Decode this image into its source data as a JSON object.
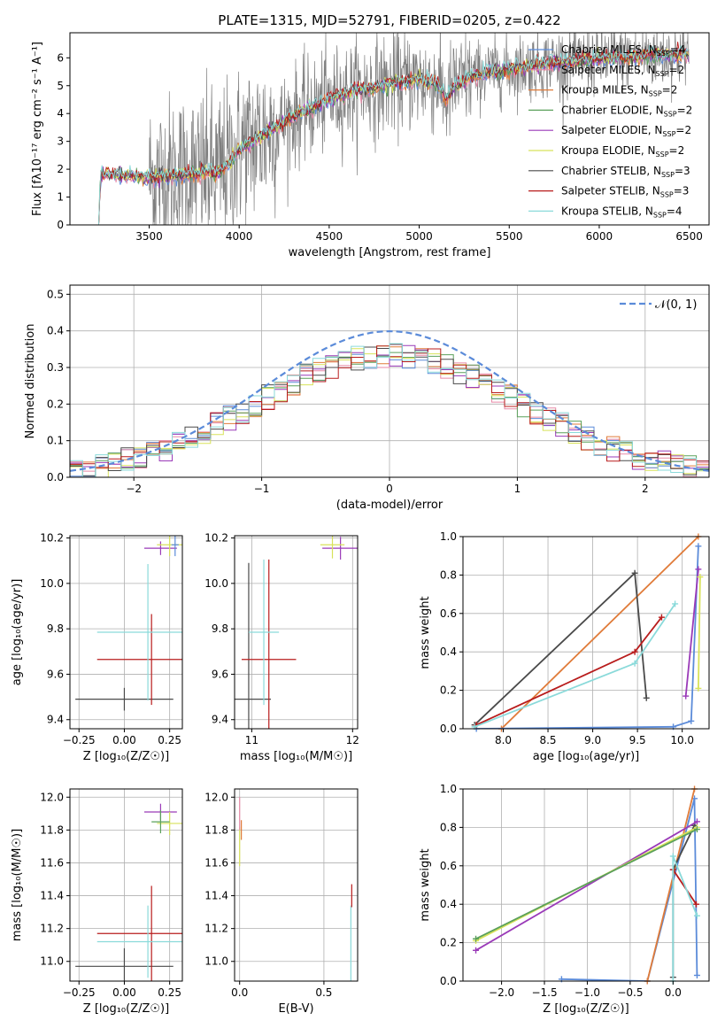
{
  "figure": {
    "title": "PLATE=1315, MJD=52791, FIBERID=0205, z=0.422"
  },
  "colors": {
    "Chabrier MILES": "#5b8bd9",
    "Salpeter MILES": "#e88aa8",
    "Kroupa MILES": "#e07b39",
    "Chabrier ELODIE": "#5aa05a",
    "Salpeter ELODIE": "#9a3ab8",
    "Kroupa ELODIE": "#d8e25a",
    "Chabrier STELIB": "#4a4a4a",
    "Salpeter STELIB": "#b81c1c",
    "Kroupa STELIB": "#8adada",
    "data": "#7f7f7f",
    "grid": "#b0b0b0",
    "normal": "#5b8bd9"
  },
  "chart_data": [
    {
      "id": "spectrum",
      "type": "line",
      "title": "PLATE=1315, MJD=52791, FIBERID=0205, z=0.422",
      "xlabel": "wavelength [Angstrom, rest frame]",
      "xlim": [
        3060,
        6610
      ],
      "ylim": [
        0,
        6.9
      ],
      "xticks": [
        "3500",
        "4000",
        "4500",
        "5000",
        "5500",
        "6000",
        "6500"
      ],
      "yticks": [
        "0",
        "1",
        "2",
        "3",
        "4",
        "5",
        "6"
      ],
      "grid": false,
      "legend_location": "upper right",
      "legend": [
        {
          "label": "Chabrier MILES",
          "nssp": "4"
        },
        {
          "label": "Salpeter MILES",
          "nssp": "2"
        },
        {
          "label": "Kroupa MILES",
          "nssp": "2"
        },
        {
          "label": "Chabrier ELODIE",
          "nssp": "2"
        },
        {
          "label": "Salpeter ELODIE",
          "nssp": "2"
        },
        {
          "label": "Kroupa ELODIE",
          "nssp": "2"
        },
        {
          "label": "Chabrier STELIB",
          "nssp": "3"
        },
        {
          "label": "Salpeter STELIB",
          "nssp": "3"
        },
        {
          "label": "Kroupa STELIB",
          "nssp": "4"
        }
      ],
      "continuum": {
        "wavelength": [
          3220,
          3230,
          3300,
          3400,
          3500,
          3600,
          3700,
          3800,
          3880,
          3920,
          3960,
          4000,
          4100,
          4200,
          4300,
          4400,
          4500,
          4600,
          4700,
          4800,
          4900,
          5000,
          5100,
          5150,
          5200,
          5300,
          5400,
          5500,
          5600,
          5700,
          5800,
          5900,
          6000,
          6100,
          6200,
          6300,
          6400,
          6500
        ],
        "flux": [
          0,
          1.85,
          1.8,
          1.75,
          1.7,
          1.75,
          1.8,
          1.9,
          1.85,
          2.05,
          2.3,
          2.7,
          3.1,
          3.5,
          3.9,
          4.2,
          4.5,
          4.75,
          4.9,
          5.0,
          5.15,
          5.2,
          5.1,
          4.5,
          5.0,
          5.35,
          5.5,
          5.6,
          5.7,
          5.8,
          5.85,
          5.9,
          5.95,
          6.0,
          6.05,
          6.1,
          6.1,
          6.15
        ]
      },
      "data_range": [
        3500,
        6500
      ],
      "data_noise_sigma_blue": 1.5,
      "data_noise_sigma_red": 0.6
    },
    {
      "id": "residuals",
      "type": "line",
      "xlabel": "(data-model)/error",
      "ylabel": "Normed distribution",
      "xlim": [
        -2.5,
        2.5
      ],
      "ylim": [
        0,
        0.525
      ],
      "xticks": [
        -2,
        -1,
        0,
        1,
        2
      ],
      "xtick_labels": [
        "−2",
        "−1",
        "0",
        "1",
        "2"
      ],
      "yticks": [
        0,
        0.1,
        0.2,
        0.3,
        0.4,
        0.5
      ],
      "ytick_labels": [
        "0.0",
        "0.1",
        "0.2",
        "0.3",
        "0.4",
        "0.5"
      ],
      "grid": true,
      "legend": "𝒩(0, 1)",
      "bin_width": 0.1,
      "bins_from": -2.5,
      "bins_to": 2.5
    },
    {
      "id": "age_vs_Z",
      "type": "scatter",
      "xlabel": "Z [log₁₀(Z/Z☉)]",
      "ylabel": "age  [log₁₀(age/yr)]",
      "xlim": [
        -0.3,
        0.32
      ],
      "ylim": [
        9.36,
        10.21
      ],
      "xticks": [
        "−0.25",
        "0.00",
        "0.25"
      ],
      "yticks": [
        "9.4",
        "9.6",
        "9.8",
        "10.0",
        "10.2"
      ],
      "grid": true,
      "points": [
        {
          "model": "Chabrier STELIB",
          "x": 0.0,
          "xerr": 0.27,
          "y": 9.49,
          "yerr": 0.05
        },
        {
          "model": "Salpeter STELIB",
          "x": 0.15,
          "xerr": 0.3,
          "y": 9.665,
          "yerr": 0.2
        },
        {
          "model": "Kroupa STELIB",
          "x": 0.13,
          "xerr": 0.28,
          "y": 9.785,
          "yerr": 0.3
        },
        {
          "model": "Salpeter ELODIE",
          "x": 0.2,
          "xerr": 0.09,
          "y": 10.155,
          "yerr": 0.03
        },
        {
          "model": "Kroupa ELODIE",
          "x": 0.25,
          "xerr": 0.07,
          "y": 10.17,
          "yerr": 0.05
        },
        {
          "model": "Chabrier MILES",
          "x": 0.28,
          "xerr": 0.02,
          "y": 10.17,
          "yerr": 0.05
        }
      ]
    },
    {
      "id": "age_vs_mass",
      "type": "scatter",
      "xlabel": "mass [log₁₀(M/M☉)]",
      "ylabel": "",
      "xlim": [
        10.83,
        12.05
      ],
      "ylim": [
        9.36,
        10.21
      ],
      "xticks": [
        "11",
        "12"
      ],
      "yticks": [
        "9.4",
        "9.6",
        "9.8",
        "10.0",
        "10.2"
      ],
      "grid": true,
      "points": [
        {
          "model": "Chabrier STELIB",
          "x": 10.97,
          "xerr": 0.22,
          "y": 9.49,
          "yerr": 0.6
        },
        {
          "model": "Salpeter STELIB",
          "x": 11.17,
          "xerr": 0.27,
          "y": 9.665,
          "yerr": 0.44
        },
        {
          "model": "Kroupa STELIB",
          "x": 11.12,
          "xerr": 0.15,
          "y": 9.785,
          "yerr": 0.32
        },
        {
          "model": "Salpeter ELODIE",
          "x": 11.88,
          "xerr": 0.18,
          "y": 10.155,
          "yerr": 0.05
        },
        {
          "model": "Kroupa ELODIE",
          "x": 11.8,
          "xerr": 0.12,
          "y": 10.17,
          "yerr": 0.06
        }
      ]
    },
    {
      "id": "weights_vs_age",
      "type": "line",
      "xlabel": "age  [log₁₀(age/yr)]",
      "ylabel": "mass weight",
      "xlim": [
        7.55,
        10.3
      ],
      "ylim": [
        0,
        1
      ],
      "xticks": [
        "8.0",
        "8.5",
        "9.0",
        "9.5",
        "10.0"
      ],
      "yticks": [
        "0.0",
        "0.2",
        "0.4",
        "0.6",
        "0.8",
        "1.0"
      ],
      "grid": true,
      "series": [
        {
          "model": "Kroupa MILES",
          "x": [
            7.98,
            10.18
          ],
          "y": [
            0.0,
            1.0
          ]
        },
        {
          "model": "Chabrier MILES",
          "x": [
            7.7,
            9.9,
            10.1,
            10.18
          ],
          "y": [
            0.0,
            0.01,
            0.04,
            0.95
          ]
        },
        {
          "model": "Chabrier STELIB",
          "x": [
            7.68,
            9.47,
            9.6
          ],
          "y": [
            0.02,
            0.81,
            0.16
          ]
        },
        {
          "model": "Salpeter STELIB",
          "x": [
            7.7,
            9.47,
            9.77
          ],
          "y": [
            0.02,
            0.4,
            0.58
          ]
        },
        {
          "model": "Kroupa STELIB",
          "x": [
            7.68,
            9.47,
            9.92
          ],
          "y": [
            0.01,
            0.34,
            0.65
          ]
        },
        {
          "model": "Salpeter ELODIE",
          "x": [
            10.04,
            10.18
          ],
          "y": [
            0.17,
            0.83
          ]
        },
        {
          "model": "Kroupa ELODIE",
          "x": [
            10.18,
            10.2
          ],
          "y": [
            0.21,
            0.79
          ]
        }
      ]
    },
    {
      "id": "mass_vs_Z",
      "type": "scatter",
      "xlabel": "Z [log₁₀(Z/Z☉)]",
      "ylabel": "mass [log₁₀(M/M☉)]",
      "xlim": [
        -0.3,
        0.32
      ],
      "ylim": [
        10.88,
        12.05
      ],
      "xticks": [
        "−0.25",
        "0.00",
        "0.25"
      ],
      "yticks": [
        "11.0",
        "11.2",
        "11.4",
        "11.6",
        "11.8",
        "12.0"
      ],
      "grid": true,
      "points": [
        {
          "model": "Chabrier STELIB",
          "x": 0.0,
          "xerr": 0.27,
          "y": 10.97,
          "yerr": 0.11
        },
        {
          "model": "Salpeter STELIB",
          "x": 0.15,
          "xerr": 0.3,
          "y": 11.17,
          "yerr": 0.29
        },
        {
          "model": "Kroupa STELIB",
          "x": 0.13,
          "xerr": 0.28,
          "y": 11.12,
          "yerr": 0.22
        },
        {
          "model": "Salpeter ELODIE",
          "x": 0.2,
          "xerr": 0.09,
          "y": 11.91,
          "yerr": 0.05
        },
        {
          "model": "Kroupa ELODIE",
          "x": 0.25,
          "xerr": 0.07,
          "y": 11.84,
          "yerr": 0.07
        },
        {
          "model": "Chabrier ELODIE",
          "x": 0.2,
          "xerr": 0.05,
          "y": 11.85,
          "yerr": 0.07
        }
      ]
    },
    {
      "id": "mass_vs_ebv",
      "type": "scatter",
      "xlabel": "E(B-V)",
      "ylabel": "",
      "xlim": [
        -0.03,
        0.7
      ],
      "ylim": [
        10.88,
        12.05
      ],
      "xticks": [
        "0.0",
        "0.5"
      ],
      "yticks": [
        "11.0",
        "11.2",
        "11.4",
        "11.6",
        "11.8",
        "12.0"
      ],
      "grid": true,
      "points": [
        {
          "model": "Kroupa ELODIE",
          "x": 0.0,
          "y": 11.7,
          "yerr": 0.12
        },
        {
          "model": "Salpeter MILES",
          "x": 0.0,
          "y": 11.9,
          "yerr": 0.1
        },
        {
          "model": "Kroupa MILES",
          "x": 0.01,
          "y": 11.8,
          "yerr": 0.06
        },
        {
          "model": "Kroupa STELIB",
          "x": 0.66,
          "y": 11.1,
          "yerr": 0.24
        },
        {
          "model": "Salpeter STELIB",
          "x": 0.665,
          "y": 11.4,
          "yerr": 0.07
        }
      ]
    },
    {
      "id": "weights_vs_Z",
      "type": "line",
      "xlabel": "Z [log₁₀(Z/Z☉)]",
      "ylabel": "mass weight",
      "xlim": [
        -2.45,
        0.42
      ],
      "ylim": [
        0,
        1
      ],
      "xticks": [
        "−2.0",
        "−1.5",
        "−1.0",
        "−0.5",
        "0.0"
      ],
      "yticks": [
        "0.0",
        "0.2",
        "0.4",
        "0.6",
        "0.8",
        "1.0"
      ],
      "grid": true,
      "series": [
        {
          "model": "Chabrier MILES",
          "x": [
            -1.3,
            -0.3,
            0.25,
            0.28
          ],
          "y": [
            0.01,
            0.0,
            0.95,
            0.03
          ]
        },
        {
          "model": "Kroupa MILES",
          "x": [
            -0.3,
            0.25
          ],
          "y": [
            0.0,
            1.0
          ]
        },
        {
          "model": "Chabrier STELIB",
          "x": [
            0.0,
            0.0,
            0.25
          ],
          "y": [
            0.02,
            0.58,
            0.81
          ]
        },
        {
          "model": "Salpeter STELIB",
          "x": [
            0.0,
            0.27
          ],
          "y": [
            0.58,
            0.4
          ]
        },
        {
          "model": "Kroupa STELIB",
          "x": [
            0.0,
            0.0,
            0.28
          ],
          "y": [
            0.0,
            0.65,
            0.34
          ]
        },
        {
          "model": "Salpeter ELODIE",
          "x": [
            -2.3,
            0.28
          ],
          "y": [
            0.16,
            0.83
          ]
        },
        {
          "model": "Kroupa ELODIE",
          "x": [
            -2.3,
            0.28
          ],
          "y": [
            0.21,
            0.8
          ]
        },
        {
          "model": "Chabrier ELODIE",
          "x": [
            -2.3,
            0.28
          ],
          "y": [
            0.22,
            0.79
          ]
        }
      ]
    }
  ]
}
